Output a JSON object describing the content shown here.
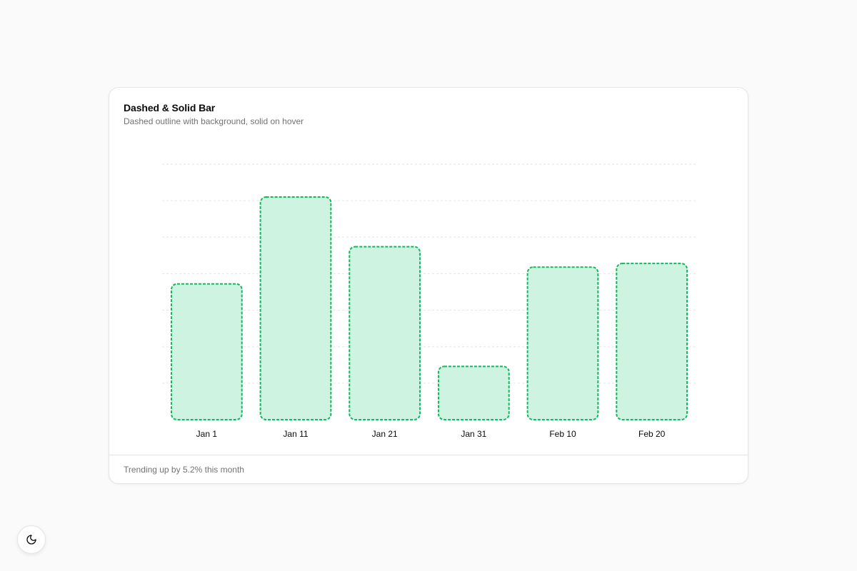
{
  "card": {
    "title": "Dashed & Solid Bar",
    "description": "Dashed outline with background, solid on hover",
    "footer": "Trending up by 5.2% this month"
  },
  "theme_toggle": {
    "icon": "moon-icon"
  },
  "colors": {
    "bar_fill": "#cef3e0",
    "bar_stroke": "#10b95f",
    "grid": "#e5e5e5",
    "tick_text": "#0a0a0a"
  },
  "chart_data": {
    "type": "bar",
    "categories": [
      "Jan 1",
      "Jan 11",
      "Jan 21",
      "Jan 31",
      "Feb 10",
      "Feb 20"
    ],
    "values": [
      186,
      305,
      237,
      73,
      209,
      214
    ],
    "title": "",
    "xlabel": "",
    "ylabel": "",
    "ylim": [
      0,
      350
    ],
    "grid": true,
    "y_axis_visible": false
  }
}
